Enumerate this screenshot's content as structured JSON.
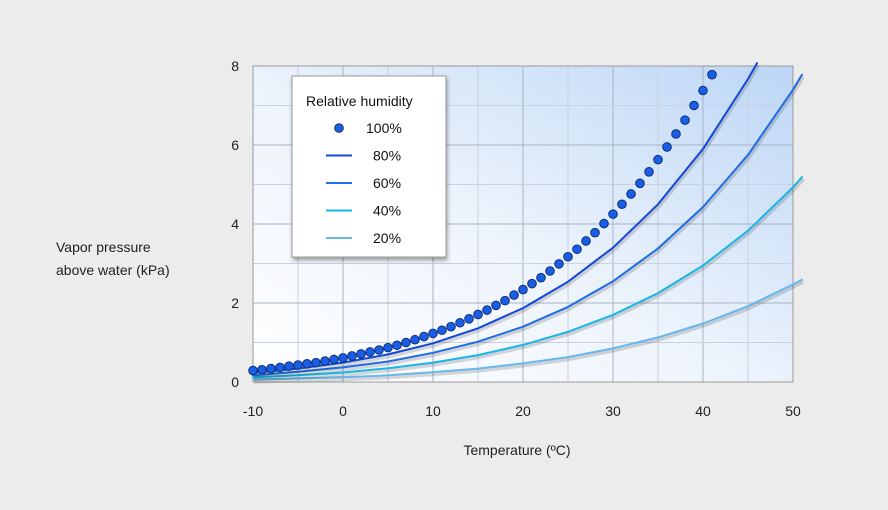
{
  "chart_data": {
    "type": "line",
    "xlabel": "Temperature (ºC)",
    "ylabel": [
      "Vapor pressure",
      "above water (kPa)"
    ],
    "xlim": [
      -10,
      50
    ],
    "ylim": [
      0,
      8
    ],
    "x_ticks": [
      -10,
      0,
      10,
      20,
      30,
      40,
      50
    ],
    "y_ticks": [
      0,
      2,
      4,
      6,
      8
    ],
    "grid": true,
    "legend": {
      "title": "Relative humidity",
      "placement": "top-left"
    },
    "series": [
      {
        "name": "100%",
        "style": "markers",
        "color": "#1a5ee6",
        "x": [
          -10,
          -9,
          -8,
          -7,
          -6,
          -5,
          -4,
          -3,
          -2,
          -1,
          0,
          1,
          2,
          3,
          4,
          5,
          6,
          7,
          8,
          9,
          10,
          11,
          12,
          13,
          14,
          15,
          16,
          17,
          18,
          19,
          20,
          21,
          22,
          23,
          24,
          25,
          26,
          27,
          28,
          29,
          30,
          31,
          32,
          33,
          34,
          35,
          36,
          37,
          38,
          39,
          40,
          41
        ],
        "y": [
          0.29,
          0.31,
          0.34,
          0.37,
          0.4,
          0.43,
          0.46,
          0.49,
          0.53,
          0.57,
          0.61,
          0.66,
          0.71,
          0.76,
          0.81,
          0.87,
          0.93,
          1.0,
          1.07,
          1.15,
          1.23,
          1.31,
          1.4,
          1.5,
          1.6,
          1.71,
          1.82,
          1.94,
          2.06,
          2.2,
          2.34,
          2.49,
          2.64,
          2.81,
          2.99,
          3.17,
          3.36,
          3.57,
          3.78,
          4.01,
          4.25,
          4.5,
          4.76,
          5.03,
          5.32,
          5.63,
          5.95,
          6.28,
          6.63,
          7.0,
          7.38,
          7.78
        ]
      },
      {
        "name": "80%",
        "style": "line",
        "color": "#1448d8",
        "x": [
          -10,
          -5,
          0,
          5,
          10,
          15,
          20,
          25,
          30,
          35,
          40,
          45,
          46
        ],
        "y": [
          0.23,
          0.34,
          0.49,
          0.7,
          0.98,
          1.36,
          1.87,
          2.54,
          3.4,
          4.5,
          5.9,
          7.67,
          8.07
        ]
      },
      {
        "name": "60%",
        "style": "line",
        "color": "#1f6ee6",
        "x": [
          -10,
          -5,
          0,
          5,
          10,
          15,
          20,
          25,
          30,
          35,
          40,
          45,
          50,
          51
        ],
        "y": [
          0.17,
          0.26,
          0.37,
          0.52,
          0.74,
          1.02,
          1.4,
          1.9,
          2.55,
          3.38,
          4.43,
          5.75,
          7.4,
          7.78
        ]
      },
      {
        "name": "40%",
        "style": "line",
        "color": "#1ab6e6",
        "x": [
          -10,
          -5,
          0,
          5,
          10,
          15,
          20,
          25,
          30,
          35,
          40,
          45,
          50,
          51
        ],
        "y": [
          0.12,
          0.17,
          0.24,
          0.35,
          0.49,
          0.68,
          0.94,
          1.27,
          1.7,
          2.25,
          2.95,
          3.83,
          4.93,
          5.19
        ]
      },
      {
        "name": "20%",
        "style": "line",
        "color": "#66b8ee",
        "x": [
          -10,
          -5,
          0,
          5,
          10,
          15,
          20,
          25,
          30,
          35,
          40,
          45,
          50,
          51
        ],
        "y": [
          0.06,
          0.09,
          0.12,
          0.17,
          0.25,
          0.34,
          0.47,
          0.63,
          0.85,
          1.13,
          1.48,
          1.92,
          2.47,
          2.59
        ]
      }
    ]
  }
}
